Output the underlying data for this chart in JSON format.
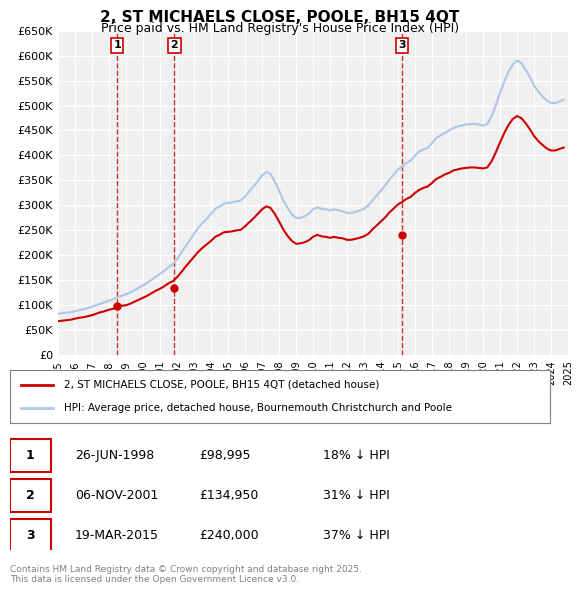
{
  "title": "2, ST MICHAELS CLOSE, POOLE, BH15 4QT",
  "subtitle": "Price paid vs. HM Land Registry's House Price Index (HPI)",
  "ylabel": "",
  "ylim": [
    0,
    650000
  ],
  "yticks": [
    0,
    50000,
    100000,
    150000,
    200000,
    250000,
    300000,
    350000,
    400000,
    450000,
    500000,
    550000,
    600000,
    650000
  ],
  "ytick_labels": [
    "£0",
    "£50K",
    "£100K",
    "£150K",
    "£200K",
    "£250K",
    "£300K",
    "£350K",
    "£400K",
    "£450K",
    "£500K",
    "£550K",
    "£600K",
    "£650K"
  ],
  "bg_color": "#ffffff",
  "plot_bg_color": "#f0f0f0",
  "grid_color": "#ffffff",
  "sale_dates": [
    1998.49,
    2001.85,
    2015.22
  ],
  "sale_prices": [
    98995,
    134950,
    240000
  ],
  "sale_labels": [
    "1",
    "2",
    "3"
  ],
  "hpi_line_color": "#aec6e8",
  "sale_line_color": "#cc0000",
  "sale_marker_color": "#cc0000",
  "vline_color": "#cc0000",
  "legend_entries": [
    "2, ST MICHAELS CLOSE, POOLE, BH15 4QT (detached house)",
    "HPI: Average price, detached house, Bournemouth Christchurch and Poole"
  ],
  "table_rows": [
    [
      "1",
      "26-JUN-1998",
      "£98,995",
      "18% ↓ HPI"
    ],
    [
      "2",
      "06-NOV-2001",
      "£134,950",
      "31% ↓ HPI"
    ],
    [
      "3",
      "19-MAR-2015",
      "£240,000",
      "37% ↓ HPI"
    ]
  ],
  "footnote": "Contains HM Land Registry data © Crown copyright and database right 2025.\nThis data is licensed under the Open Government Licence v3.0.",
  "hpi_x": [
    1995.0,
    1995.25,
    1995.5,
    1995.75,
    1996.0,
    1996.25,
    1996.5,
    1996.75,
    1997.0,
    1997.25,
    1997.5,
    1997.75,
    1998.0,
    1998.25,
    1998.5,
    1998.75,
    1999.0,
    1999.25,
    1999.5,
    1999.75,
    2000.0,
    2000.25,
    2000.5,
    2000.75,
    2001.0,
    2001.25,
    2001.5,
    2001.75,
    2002.0,
    2002.25,
    2002.5,
    2002.75,
    2003.0,
    2003.25,
    2003.5,
    2003.75,
    2004.0,
    2004.25,
    2004.5,
    2004.75,
    2005.0,
    2005.25,
    2005.5,
    2005.75,
    2006.0,
    2006.25,
    2006.5,
    2006.75,
    2007.0,
    2007.25,
    2007.5,
    2007.75,
    2008.0,
    2008.25,
    2008.5,
    2008.75,
    2009.0,
    2009.25,
    2009.5,
    2009.75,
    2010.0,
    2010.25,
    2010.5,
    2010.75,
    2011.0,
    2011.25,
    2011.5,
    2011.75,
    2012.0,
    2012.25,
    2012.5,
    2012.75,
    2013.0,
    2013.25,
    2013.5,
    2013.75,
    2014.0,
    2014.25,
    2014.5,
    2014.75,
    2015.0,
    2015.25,
    2015.5,
    2015.75,
    2016.0,
    2016.25,
    2016.5,
    2016.75,
    2017.0,
    2017.25,
    2017.5,
    2017.75,
    2018.0,
    2018.25,
    2018.5,
    2018.75,
    2019.0,
    2019.25,
    2019.5,
    2019.75,
    2020.0,
    2020.25,
    2020.5,
    2020.75,
    2021.0,
    2021.25,
    2021.5,
    2021.75,
    2022.0,
    2022.25,
    2022.5,
    2022.75,
    2023.0,
    2023.25,
    2023.5,
    2023.75,
    2024.0,
    2024.25,
    2024.5,
    2024.75
  ],
  "hpi_y": [
    83000,
    84000,
    85000,
    86000,
    88000,
    90000,
    92000,
    94000,
    97000,
    100000,
    103000,
    106000,
    109000,
    112000,
    116000,
    119000,
    122000,
    126000,
    130000,
    135000,
    140000,
    145000,
    151000,
    157000,
    163000,
    169000,
    176000,
    182000,
    192000,
    205000,
    218000,
    230000,
    243000,
    255000,
    265000,
    273000,
    283000,
    293000,
    298000,
    303000,
    305000,
    306000,
    308000,
    310000,
    318000,
    328000,
    338000,
    348000,
    360000,
    367000,
    363000,
    348000,
    330000,
    310000,
    295000,
    282000,
    275000,
    275000,
    278000,
    283000,
    292000,
    296000,
    293000,
    292000,
    290000,
    292000,
    290000,
    288000,
    285000,
    285000,
    287000,
    290000,
    293000,
    300000,
    310000,
    320000,
    330000,
    340000,
    352000,
    362000,
    372000,
    378000,
    385000,
    390000,
    400000,
    408000,
    412000,
    415000,
    425000,
    435000,
    440000,
    445000,
    450000,
    455000,
    458000,
    460000,
    462000,
    463000,
    463000,
    462000,
    460000,
    463000,
    478000,
    500000,
    525000,
    548000,
    568000,
    582000,
    590000,
    585000,
    572000,
    558000,
    540000,
    528000,
    518000,
    510000,
    505000,
    505000,
    508000,
    512000
  ],
  "red_x": [
    1995.0,
    1995.25,
    1995.5,
    1995.75,
    1996.0,
    1996.25,
    1996.5,
    1996.75,
    1997.0,
    1997.25,
    1997.5,
    1997.75,
    1998.0,
    1998.25,
    1998.5,
    1998.75,
    1999.0,
    1999.25,
    1999.5,
    1999.75,
    2000.0,
    2000.25,
    2000.5,
    2000.75,
    2001.0,
    2001.25,
    2001.5,
    2001.75,
    2002.0,
    2002.25,
    2002.5,
    2002.75,
    2003.0,
    2003.25,
    2003.5,
    2003.75,
    2004.0,
    2004.25,
    2004.5,
    2004.75,
    2005.0,
    2005.25,
    2005.5,
    2005.75,
    2006.0,
    2006.25,
    2006.5,
    2006.75,
    2007.0,
    2007.25,
    2007.5,
    2007.75,
    2008.0,
    2008.25,
    2008.5,
    2008.75,
    2009.0,
    2009.25,
    2009.5,
    2009.75,
    2010.0,
    2010.25,
    2010.5,
    2010.75,
    2011.0,
    2011.25,
    2011.5,
    2011.75,
    2012.0,
    2012.25,
    2012.5,
    2012.75,
    2013.0,
    2013.25,
    2013.5,
    2013.75,
    2014.0,
    2014.25,
    2014.5,
    2014.75,
    2015.0,
    2015.25,
    2015.5,
    2015.75,
    2016.0,
    2016.25,
    2016.5,
    2016.75,
    2017.0,
    2017.25,
    2017.5,
    2017.75,
    2018.0,
    2018.25,
    2018.5,
    2018.75,
    2019.0,
    2019.25,
    2019.5,
    2019.75,
    2020.0,
    2020.25,
    2020.5,
    2020.75,
    2021.0,
    2021.25,
    2021.5,
    2021.75,
    2022.0,
    2022.25,
    2022.5,
    2022.75,
    2023.0,
    2023.25,
    2023.5,
    2023.75,
    2024.0,
    2024.25,
    2024.5,
    2024.75
  ],
  "red_y": [
    68000,
    69000,
    70000,
    71000,
    73000,
    75000,
    76000,
    78000,
    80000,
    83000,
    86000,
    88000,
    91000,
    93000,
    96000,
    99000,
    100000,
    103000,
    107000,
    111000,
    115000,
    119000,
    124000,
    129000,
    133000,
    138000,
    144000,
    148000,
    156000,
    166000,
    177000,
    187000,
    197000,
    207000,
    215000,
    222000,
    229000,
    237000,
    241000,
    246000,
    247000,
    248000,
    250000,
    251000,
    258000,
    266000,
    274000,
    283000,
    292000,
    298000,
    295000,
    283000,
    268000,
    252000,
    239000,
    229000,
    223000,
    224000,
    226000,
    230000,
    237000,
    241000,
    238000,
    237000,
    235000,
    237000,
    235000,
    234000,
    231000,
    231000,
    233000,
    235000,
    238000,
    243000,
    252000,
    260000,
    268000,
    276000,
    286000,
    294000,
    302000,
    307000,
    313000,
    317000,
    325000,
    331000,
    335000,
    338000,
    345000,
    353000,
    357000,
    362000,
    365000,
    370000,
    372000,
    374000,
    375000,
    376000,
    376000,
    375000,
    374000,
    376000,
    388000,
    406000,
    426000,
    445000,
    461000,
    473000,
    479000,
    475000,
    465000,
    453000,
    439000,
    429000,
    421000,
    414000,
    410000,
    410000,
    413000,
    416000
  ]
}
